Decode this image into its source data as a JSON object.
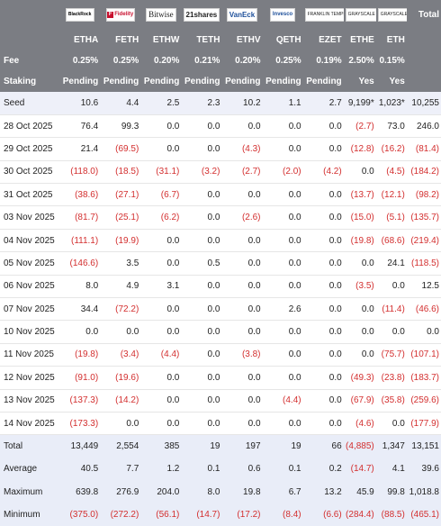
{
  "header": {
    "total_label": "Total",
    "logos": [
      {
        "name": "blackrock",
        "text": "BlackRock"
      },
      {
        "name": "fidelity",
        "text": "Fidelity"
      },
      {
        "name": "bitwise",
        "text": "Bitwise"
      },
      {
        "name": "21shares",
        "text": "21shares"
      },
      {
        "name": "vaneck",
        "text": "VanEck"
      },
      {
        "name": "invesco",
        "text": "Invesco"
      },
      {
        "name": "franklin",
        "text": "FRANKLIN TEMPLETON"
      },
      {
        "name": "grayscale-ethe",
        "text": "GRAYSCALE"
      },
      {
        "name": "grayscale-eth",
        "text": "GRAYSCALE"
      }
    ],
    "tickers": [
      "ETHA",
      "FETH",
      "ETHW",
      "TETH",
      "ETHV",
      "QETH",
      "EZET",
      "ETHE",
      "ETH"
    ],
    "fee_label": "Fee",
    "fees": [
      "0.25%",
      "0.25%",
      "0.20%",
      "0.21%",
      "0.20%",
      "0.25%",
      "0.19%",
      "2.50%",
      "0.15%"
    ],
    "staking_label": "Staking",
    "staking": [
      "Pending",
      "Pending",
      "Pending",
      "Pending",
      "Pending",
      "Pending",
      "Pending",
      "Yes",
      "Yes"
    ]
  },
  "rows": [
    {
      "label": "Seed",
      "cells": [
        "10.6",
        "4.4",
        "2.5",
        "2.3",
        "10.2",
        "1.1",
        "2.7",
        "9,199*",
        "1,023*",
        "10,255"
      ]
    },
    {
      "label": "28 Oct 2025",
      "cells": [
        "76.4",
        "99.3",
        "0.0",
        "0.0",
        "0.0",
        "0.0",
        "0.0",
        "(2.7)",
        "73.0",
        "246.0"
      ]
    },
    {
      "label": "29 Oct 2025",
      "cells": [
        "21.4",
        "(69.5)",
        "0.0",
        "0.0",
        "(4.3)",
        "0.0",
        "0.0",
        "(12.8)",
        "(16.2)",
        "(81.4)"
      ]
    },
    {
      "label": "30 Oct 2025",
      "cells": [
        "(118.0)",
        "(18.5)",
        "(31.1)",
        "(3.2)",
        "(2.7)",
        "(2.0)",
        "(4.2)",
        "0.0",
        "(4.5)",
        "(184.2)"
      ]
    },
    {
      "label": "31 Oct 2025",
      "cells": [
        "(38.6)",
        "(27.1)",
        "(6.7)",
        "0.0",
        "0.0",
        "0.0",
        "0.0",
        "(13.7)",
        "(12.1)",
        "(98.2)"
      ]
    },
    {
      "label": "03 Nov 2025",
      "cells": [
        "(81.7)",
        "(25.1)",
        "(6.2)",
        "0.0",
        "(2.6)",
        "0.0",
        "0.0",
        "(15.0)",
        "(5.1)",
        "(135.7)"
      ]
    },
    {
      "label": "04 Nov 2025",
      "cells": [
        "(111.1)",
        "(19.9)",
        "0.0",
        "0.0",
        "0.0",
        "0.0",
        "0.0",
        "(19.8)",
        "(68.6)",
        "(219.4)"
      ]
    },
    {
      "label": "05 Nov 2025",
      "cells": [
        "(146.6)",
        "3.5",
        "0.0",
        "0.5",
        "0.0",
        "0.0",
        "0.0",
        "0.0",
        "24.1",
        "(118.5)"
      ]
    },
    {
      "label": "06 Nov 2025",
      "cells": [
        "8.0",
        "4.9",
        "3.1",
        "0.0",
        "0.0",
        "0.0",
        "0.0",
        "(3.5)",
        "0.0",
        "12.5"
      ]
    },
    {
      "label": "07 Nov 2025",
      "cells": [
        "34.4",
        "(72.2)",
        "0.0",
        "0.0",
        "0.0",
        "2.6",
        "0.0",
        "0.0",
        "(11.4)",
        "(46.6)"
      ]
    },
    {
      "label": "10 Nov 2025",
      "cells": [
        "0.0",
        "0.0",
        "0.0",
        "0.0",
        "0.0",
        "0.0",
        "0.0",
        "0.0",
        "0.0",
        "0.0"
      ]
    },
    {
      "label": "11 Nov 2025",
      "cells": [
        "(19.8)",
        "(3.4)",
        "(4.4)",
        "0.0",
        "(3.8)",
        "0.0",
        "0.0",
        "0.0",
        "(75.7)",
        "(107.1)"
      ]
    },
    {
      "label": "12 Nov 2025",
      "cells": [
        "(91.0)",
        "(19.6)",
        "0.0",
        "0.0",
        "0.0",
        "0.0",
        "0.0",
        "(49.3)",
        "(23.8)",
        "(183.7)"
      ]
    },
    {
      "label": "13 Nov 2025",
      "cells": [
        "(137.3)",
        "(14.2)",
        "0.0",
        "0.0",
        "0.0",
        "(4.4)",
        "0.0",
        "(67.9)",
        "(35.8)",
        "(259.6)"
      ]
    },
    {
      "label": "14 Nov 2025",
      "cells": [
        "(173.3)",
        "0.0",
        "0.0",
        "0.0",
        "0.0",
        "0.0",
        "0.0",
        "(4.6)",
        "0.0",
        "(177.9)"
      ]
    }
  ],
  "summary": [
    {
      "label": "Total",
      "cells": [
        "13,449",
        "2,554",
        "385",
        "19",
        "197",
        "19",
        "66",
        "(4,885)",
        "1,347",
        "13,151"
      ]
    },
    {
      "label": "Average",
      "cells": [
        "40.5",
        "7.7",
        "1.2",
        "0.1",
        "0.6",
        "0.1",
        "0.2",
        "(14.7)",
        "4.1",
        "39.6"
      ]
    },
    {
      "label": "Maximum",
      "cells": [
        "639.8",
        "276.9",
        "204.0",
        "8.0",
        "19.8",
        "6.7",
        "13.2",
        "45.9",
        "99.8",
        "1,018.8"
      ]
    },
    {
      "label": "Minimum",
      "cells": [
        "(375.0)",
        "(272.2)",
        "(56.1)",
        "(14.7)",
        "(17.2)",
        "(8.4)",
        "(6.6)",
        "(284.4)",
        "(88.5)",
        "(465.1)"
      ]
    }
  ],
  "colors": {
    "header_bg": "#7b7d83",
    "negative": "#d32f2f",
    "summary_bg": "#e9edf8",
    "seed_bg": "#eef0f9"
  }
}
